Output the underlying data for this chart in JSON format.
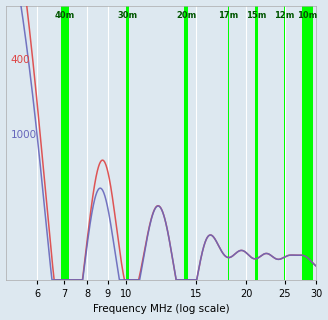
{
  "xlabel": "Frequency MHz (log scale)",
  "xmin": 5.0,
  "xmax": 30.0,
  "background_color": "#dde8f0",
  "grid_color": "#ffffff",
  "line_color_400": "#dd4444",
  "line_color_1000": "#6666bb",
  "line_color_black": "#222222",
  "band_labels": [
    "40m",
    "30m",
    "20m",
    "17m",
    "15m",
    "12m",
    "10m"
  ],
  "band_freqs": [
    7.05,
    10.1,
    14.175,
    18.068,
    21.225,
    24.94,
    28.5
  ],
  "band_widths_mhz": [
    0.35,
    0.2,
    0.35,
    0.1,
    0.35,
    0.1,
    1.75
  ],
  "band_color": "#00ff00",
  "label_400": "400",
  "label_1000": "1000",
  "label_color_400": "#dd4444",
  "label_color_1000": "#6666bb"
}
